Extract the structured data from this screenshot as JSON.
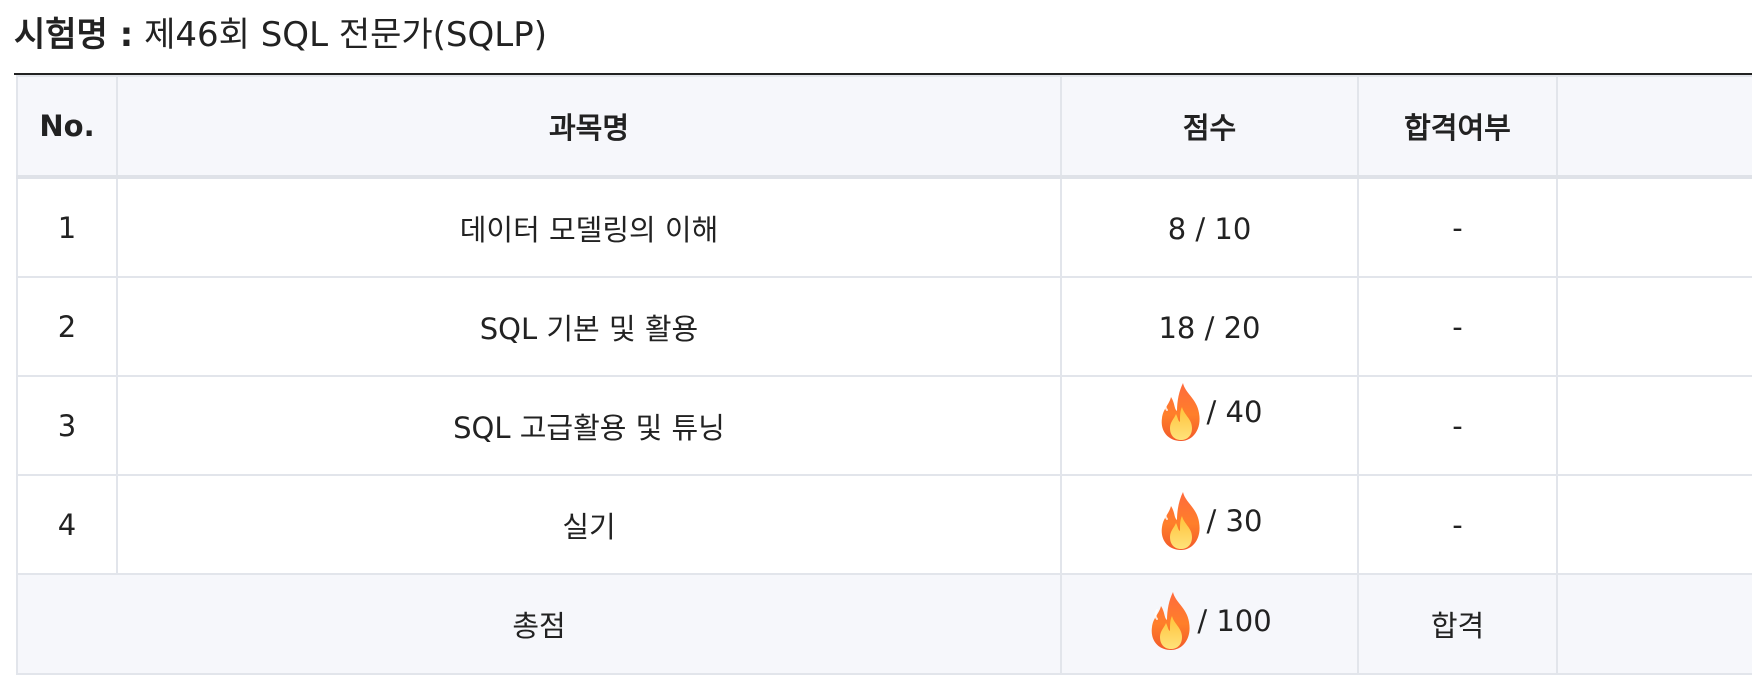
{
  "exam": {
    "label": "시험명 :",
    "name": "제46회 SQL 전문가(SQLP)"
  },
  "table": {
    "headers": {
      "no": "No.",
      "subject": "과목명",
      "score": "점수",
      "pass": "합격여부"
    },
    "rows": [
      {
        "no": "1",
        "subject": "데이터 모델링의 이해",
        "score": "8 / 10",
        "score_hidden": false,
        "pass": "-"
      },
      {
        "no": "2",
        "subject": "SQL 기본 및 활용",
        "score": "18 / 20",
        "score_hidden": false,
        "pass": "-"
      },
      {
        "no": "3",
        "subject": "SQL 고급활용 및 튜닝",
        "score": "/ 40",
        "score_hidden": true,
        "pass": "-"
      },
      {
        "no": "4",
        "subject": "실기",
        "score": "/ 30",
        "score_hidden": true,
        "pass": "-"
      }
    ],
    "total": {
      "label": "총점",
      "score": "/ 100",
      "score_hidden": true,
      "pass": "합격"
    }
  },
  "icons": {
    "score_cover": "fire-emoji-icon"
  },
  "colors": {
    "header_bg": "#f6f7fb",
    "border": "#e2e5eb",
    "text": "#222222",
    "title_rule": "#222222"
  }
}
